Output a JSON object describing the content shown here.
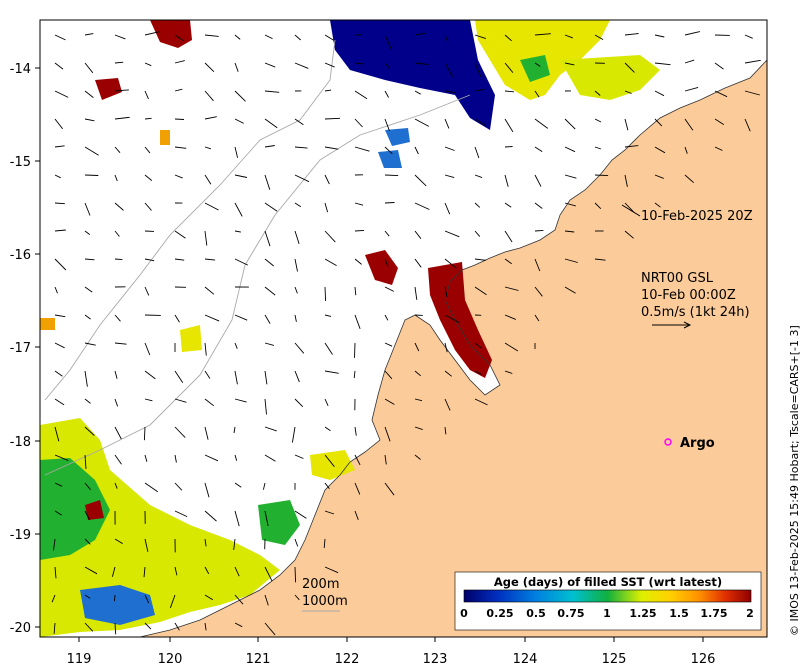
{
  "map": {
    "x_ticks": [
      "119",
      "120",
      "121",
      "122",
      "123",
      "124",
      "125",
      "126"
    ],
    "y_ticks": [
      "-14",
      "-15",
      "-16",
      "-17",
      "-18",
      "-19",
      "-20"
    ],
    "timestamp_label": "10-Feb-2025 20Z",
    "product_line1": "NRT00 GSL",
    "product_line2": "10-Feb 00:00Z",
    "velocity_scale": "0.5m/s (1kt 24h)",
    "argo_label": "Argo",
    "isobath_200": "200m",
    "isobath_1000": "1000m",
    "credit": "© IMOS 13-Feb-2025 15:49 Hobart; Tscale=CARS+[-1 3]",
    "colorbar": {
      "title": "Age (days) of filled SST (wrt latest)",
      "ticks": [
        "0",
        "0.25",
        "0.5",
        "0.75",
        "1",
        "1.25",
        "1.5",
        "1.75",
        "2"
      ]
    },
    "colors": {
      "land": "#fccb9a",
      "ocean": "#ffffff",
      "argo": "#ff00ff",
      "age_0": "#00008b",
      "age_0_5": "#1e6fd0",
      "age_1": "#22b030",
      "age_1_25": "#e6e600",
      "age_2": "#9b0000"
    }
  }
}
